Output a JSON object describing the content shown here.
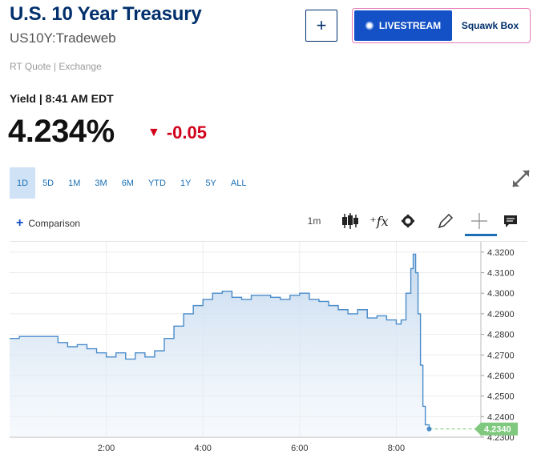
{
  "header": {
    "title": "U.S. 10 Year Treasury",
    "symbol": "US10Y:Tradeweb",
    "quote_source": "RT Quote | Exchange",
    "yield_label": "Yield | 8:41 AM EDT",
    "price": "4.234%",
    "change": "-0.05",
    "change_color": "#d0021b"
  },
  "actions": {
    "add_symbol": "+",
    "livestream": "LIVESTREAM",
    "show": "Squawk Box"
  },
  "ranges": [
    "1D",
    "5D",
    "1M",
    "3M",
    "6M",
    "YTD",
    "1Y",
    "5Y",
    "ALL"
  ],
  "active_range": "1D",
  "toolbar": {
    "comparison": "Comparison",
    "interval": "1m",
    "icons": [
      "candlestick-icon",
      "studies-fx-icon",
      "settings-gear-icon",
      "draw-pencil-icon",
      "crosshair-icon",
      "annotation-icon"
    ]
  },
  "colors": {
    "line": "#4a8cca",
    "fill_top": "#c5d9ee",
    "fill_bottom": "#eaf2fa",
    "last_price_tag": "#7ec97e",
    "brand_blue": "#002f6c",
    "accent": "#1451c6"
  },
  "chart_data": {
    "type": "area",
    "x_ticks": [
      "2:00",
      "4:00",
      "6:00",
      "8:00"
    ],
    "y_ticks": [
      "4.3200",
      "4.3100",
      "4.3000",
      "4.2900",
      "4.2800",
      "4.2700",
      "4.2600",
      "4.2500",
      "4.2400",
      "4.2300"
    ],
    "ylim": [
      4.23,
      4.325
    ],
    "xlim": [
      0,
      9.75
    ],
    "last_price_label": "4.2340",
    "last_price": 4.234,
    "grid": true,
    "series": [
      {
        "x": [
          0,
          0.2,
          0.4,
          0.6,
          0.8,
          1.0,
          1.2,
          1.4,
          1.6,
          1.8,
          2.0,
          2.2,
          2.4,
          2.6,
          2.8,
          3.0,
          3.2,
          3.4,
          3.6,
          3.8,
          4.0,
          4.2,
          4.4,
          4.6,
          4.8,
          5.0,
          5.2,
          5.4,
          5.6,
          5.8,
          6.0,
          6.2,
          6.4,
          6.6,
          6.8,
          7.0,
          7.2,
          7.4,
          7.6,
          7.8,
          8.0,
          8.1,
          8.2,
          8.3,
          8.35,
          8.4,
          8.45,
          8.5,
          8.55,
          8.6,
          8.68
        ],
        "y": [
          4.278,
          4.279,
          4.279,
          4.279,
          4.279,
          4.276,
          4.274,
          4.275,
          4.273,
          4.271,
          4.269,
          4.271,
          4.268,
          4.271,
          4.269,
          4.272,
          4.278,
          4.284,
          4.29,
          4.294,
          4.297,
          4.3,
          4.301,
          4.298,
          4.297,
          4.299,
          4.299,
          4.298,
          4.297,
          4.299,
          4.3,
          4.297,
          4.296,
          4.294,
          4.292,
          4.29,
          4.292,
          4.288,
          4.289,
          4.287,
          4.285,
          4.287,
          4.3,
          4.312,
          4.319,
          4.31,
          4.29,
          4.265,
          4.245,
          4.236,
          4.234
        ]
      }
    ]
  }
}
